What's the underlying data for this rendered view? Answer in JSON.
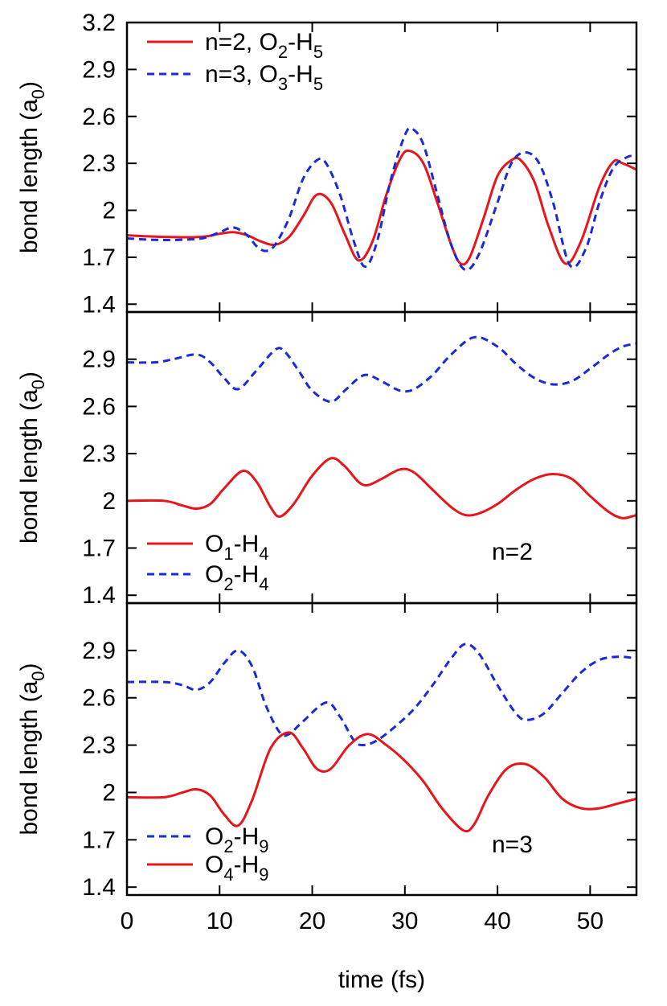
{
  "colors": {
    "red": "#e8151b",
    "blue": "#1b2ad8"
  },
  "chart_data": [
    {
      "type": "line",
      "ylabel": "bond length  (a0)",
      "ylabel_main": "bond length  (a",
      "ylabel_sub": "0",
      "ylabel_close": ")",
      "xlim": [
        0,
        55
      ],
      "ylim": [
        1.35,
        3.2
      ],
      "yticks": [
        1.4,
        1.7,
        2.0,
        2.3,
        2.6,
        2.9,
        3.2
      ],
      "yticklabels": [
        "1.4",
        "1.7",
        "2",
        "2.3",
        "2.6",
        "2.9",
        "3.2"
      ],
      "annotation": "",
      "legend_position": "top-left",
      "series": [
        {
          "name": "n=2, O2-H5",
          "label_parts": [
            [
              "n=2, O",
              ""
            ],
            [
              "2",
              "sub"
            ],
            [
              "-H",
              ""
            ],
            [
              "5",
              "sub"
            ]
          ],
          "color": "#e8151b",
          "dash": false,
          "x": [
            0,
            4,
            8,
            10,
            11.5,
            13,
            14.5,
            16,
            17.5,
            19,
            20.5,
            22,
            23.5,
            25,
            26.5,
            28,
            29.5,
            30.5,
            32,
            33.5,
            35,
            36,
            37,
            38.5,
            40,
            41.5,
            42.5,
            44,
            45.5,
            47.3,
            49,
            51,
            52.5,
            53.5,
            55
          ],
          "y": [
            1.84,
            1.83,
            1.83,
            1.85,
            1.86,
            1.84,
            1.8,
            1.78,
            1.83,
            1.96,
            2.1,
            2.05,
            1.85,
            1.68,
            1.8,
            2.1,
            2.33,
            2.38,
            2.3,
            2.05,
            1.78,
            1.66,
            1.7,
            1.95,
            2.22,
            2.32,
            2.32,
            2.18,
            1.9,
            1.66,
            1.8,
            2.15,
            2.31,
            2.3,
            2.26
          ]
        },
        {
          "name": "n=3, O3-H5",
          "label_parts": [
            [
              "n=3, O",
              ""
            ],
            [
              "3",
              "sub"
            ],
            [
              "-H",
              ""
            ],
            [
              "5",
              "sub"
            ]
          ],
          "color": "#1b2ad8",
          "dash": true,
          "x": [
            0,
            4,
            8,
            10,
            11.5,
            13,
            14,
            15,
            16,
            17.5,
            19,
            20.5,
            21.5,
            23,
            24.5,
            25.7,
            27,
            28.5,
            30,
            30.8,
            32,
            33.5,
            35,
            36.5,
            38,
            40,
            41.5,
            43,
            44.5,
            46,
            47.8,
            49.5,
            51,
            52.5,
            54,
            55
          ],
          "y": [
            1.82,
            1.81,
            1.82,
            1.86,
            1.89,
            1.84,
            1.77,
            1.74,
            1.78,
            1.95,
            2.2,
            2.32,
            2.3,
            2.1,
            1.8,
            1.64,
            1.8,
            2.2,
            2.48,
            2.52,
            2.42,
            2.1,
            1.78,
            1.62,
            1.72,
            2.05,
            2.3,
            2.37,
            2.3,
            2.05,
            1.65,
            1.75,
            2.05,
            2.27,
            2.34,
            2.35
          ]
        }
      ]
    },
    {
      "type": "line",
      "ylabel": "bond length  (a0)",
      "ylabel_main": "bond length  (a",
      "ylabel_sub": "0",
      "ylabel_close": ")",
      "xlim": [
        0,
        55
      ],
      "ylim": [
        1.35,
        3.2
      ],
      "yticks": [
        1.4,
        1.7,
        2.0,
        2.3,
        2.6,
        2.9
      ],
      "yticklabels": [
        "1.4",
        "1.7",
        "2",
        "2.3",
        "2.6",
        "2.9"
      ],
      "annotation": "n=2",
      "legend_position": "bottom-left",
      "series": [
        {
          "name": "O1-H4",
          "label_parts": [
            [
              "O",
              ""
            ],
            [
              "1",
              "sub"
            ],
            [
              "-H",
              ""
            ],
            [
              "4",
              "sub"
            ]
          ],
          "color": "#e8151b",
          "dash": false,
          "x": [
            0,
            4,
            6,
            7.5,
            9,
            10.5,
            12.5,
            14,
            15.5,
            16.5,
            18,
            20,
            22,
            23.5,
            25,
            26,
            27.5,
            29.5,
            31,
            33,
            35,
            36.5,
            38,
            40,
            42,
            44,
            46,
            48,
            50,
            52,
            53.5,
            55
          ],
          "y": [
            2.0,
            2.0,
            1.97,
            1.95,
            1.98,
            2.08,
            2.19,
            2.12,
            1.96,
            1.9,
            1.98,
            2.16,
            2.27,
            2.22,
            2.12,
            2.1,
            2.14,
            2.2,
            2.18,
            2.07,
            1.96,
            1.91,
            1.92,
            1.98,
            2.07,
            2.14,
            2.17,
            2.14,
            2.03,
            1.93,
            1.89,
            1.91
          ]
        },
        {
          "name": "O2-H4",
          "label_parts": [
            [
              "O",
              ""
            ],
            [
              "2",
              "sub"
            ],
            [
              "-H",
              ""
            ],
            [
              "4",
              "sub"
            ]
          ],
          "color": "#1b2ad8",
          "dash": true,
          "x": [
            0,
            3,
            5,
            7.5,
            9,
            10.5,
            12,
            14,
            16,
            17,
            18.5,
            20,
            22,
            23.5,
            25,
            26,
            27.5,
            29.5,
            31,
            33,
            35,
            37.5,
            40,
            42,
            44,
            46,
            48,
            50,
            52,
            53.5,
            55
          ],
          "y": [
            2.88,
            2.88,
            2.9,
            2.93,
            2.88,
            2.78,
            2.71,
            2.83,
            2.96,
            2.95,
            2.83,
            2.7,
            2.63,
            2.7,
            2.78,
            2.8,
            2.76,
            2.7,
            2.71,
            2.8,
            2.93,
            3.04,
            2.98,
            2.87,
            2.78,
            2.74,
            2.76,
            2.84,
            2.93,
            2.98,
            3.0
          ]
        }
      ]
    },
    {
      "type": "line",
      "ylabel": "bond length  (a0)",
      "ylabel_main": "bond length  (a",
      "ylabel_sub": "0",
      "ylabel_close": ")",
      "xlabel": "time  (fs)",
      "xlim": [
        0,
        55
      ],
      "ylim": [
        1.35,
        3.2
      ],
      "xticks": [
        0,
        10,
        20,
        30,
        40,
        50
      ],
      "xticklabels": [
        "0",
        "10",
        "20",
        "30",
        "40",
        "50"
      ],
      "yticks": [
        1.4,
        1.7,
        2.0,
        2.3,
        2.6,
        2.9
      ],
      "yticklabels": [
        "1.4",
        "1.7",
        "2",
        "2.3",
        "2.6",
        "2.9"
      ],
      "annotation": "n=3",
      "legend_position": "bottom-left",
      "series": [
        {
          "name": "O2-H9",
          "label_parts": [
            [
              "O",
              ""
            ],
            [
              "2",
              "sub"
            ],
            [
              "-H",
              ""
            ],
            [
              "9",
              "sub"
            ]
          ],
          "color": "#1b2ad8",
          "dash": true,
          "x": [
            0,
            4,
            6,
            7.5,
            9,
            10.5,
            12,
            13.5,
            15,
            16.5,
            17.5,
            19,
            21.5,
            23,
            24.5,
            25.5,
            27,
            29,
            31,
            33,
            35,
            36.5,
            38,
            40,
            42,
            43.2,
            45,
            47,
            49,
            51,
            53,
            55
          ],
          "y": [
            2.7,
            2.7,
            2.68,
            2.65,
            2.7,
            2.82,
            2.9,
            2.8,
            2.55,
            2.38,
            2.37,
            2.45,
            2.57,
            2.48,
            2.33,
            2.3,
            2.33,
            2.42,
            2.53,
            2.68,
            2.85,
            2.94,
            2.88,
            2.68,
            2.5,
            2.46,
            2.5,
            2.63,
            2.76,
            2.84,
            2.86,
            2.85
          ]
        },
        {
          "name": "O4-H9",
          "label_parts": [
            [
              "O",
              ""
            ],
            [
              "4",
              "sub"
            ],
            [
              "-H",
              ""
            ],
            [
              "9",
              "sub"
            ]
          ],
          "color": "#e8151b",
          "dash": false,
          "x": [
            0,
            4,
            6,
            7.5,
            9,
            10.5,
            12,
            13.5,
            15.5,
            17.5,
            19,
            20.5,
            22,
            24,
            26,
            28,
            30,
            32,
            34,
            36.3,
            37.5,
            39,
            41,
            43,
            45,
            47,
            49,
            51,
            53,
            55
          ],
          "y": [
            1.97,
            1.97,
            2.0,
            2.02,
            1.98,
            1.86,
            1.79,
            1.95,
            2.28,
            2.38,
            2.28,
            2.15,
            2.15,
            2.3,
            2.37,
            2.3,
            2.2,
            2.07,
            1.9,
            1.76,
            1.8,
            1.98,
            2.15,
            2.18,
            2.1,
            1.96,
            1.9,
            1.9,
            1.93,
            1.96
          ]
        }
      ]
    }
  ]
}
